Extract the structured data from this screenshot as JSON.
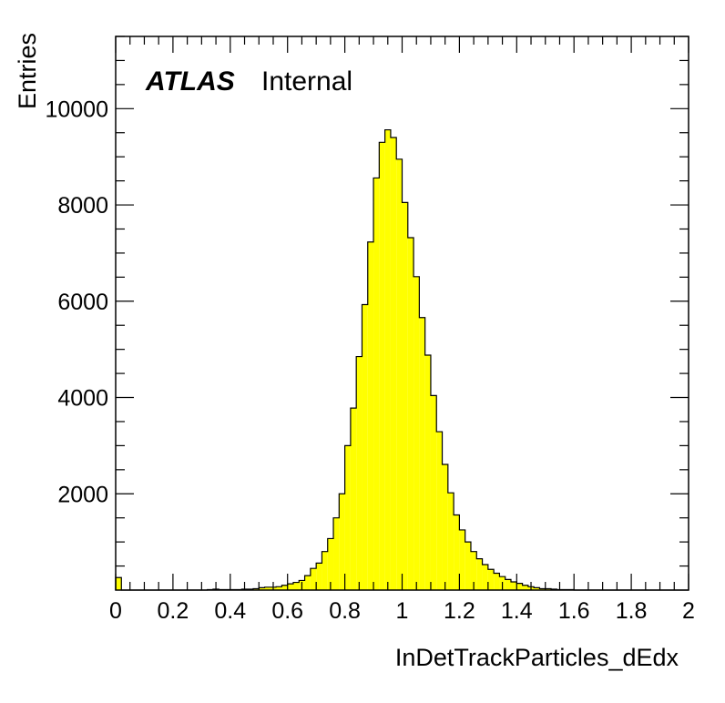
{
  "chart_data": {
    "type": "bar",
    "xlabel": "InDetTrackParticles_dEdx",
    "ylabel": "Entries",
    "xlim": [
      0,
      2
    ],
    "ylim": [
      0,
      11500
    ],
    "bin_width": 0.02,
    "fill_color": "#ffff00",
    "line_color": "#000000",
    "grid": false,
    "xticks": [
      "0",
      "0.2",
      "0.4",
      "0.6",
      "0.8",
      "1",
      "1.2",
      "1.4",
      "1.6",
      "1.8",
      "2"
    ],
    "yticks": [
      "2000",
      "4000",
      "6000",
      "8000",
      "10000"
    ],
    "label": {
      "experiment": "ATLAS",
      "status": "Internal"
    },
    "bins_lower_edge": [
      0.0,
      0.02,
      0.04,
      0.06,
      0.08,
      0.1,
      0.12,
      0.14,
      0.16,
      0.18,
      0.2,
      0.22,
      0.24,
      0.26,
      0.28,
      0.3,
      0.32,
      0.34,
      0.36,
      0.38,
      0.4,
      0.42,
      0.44,
      0.46,
      0.48,
      0.5,
      0.52,
      0.54,
      0.56,
      0.58,
      0.6,
      0.62,
      0.64,
      0.66,
      0.68,
      0.7,
      0.72,
      0.74,
      0.76,
      0.78,
      0.8,
      0.82,
      0.84,
      0.86,
      0.88,
      0.9,
      0.92,
      0.94,
      0.96,
      0.98,
      1.0,
      1.02,
      1.04,
      1.06,
      1.08,
      1.1,
      1.12,
      1.14,
      1.16,
      1.18,
      1.2,
      1.22,
      1.24,
      1.26,
      1.28,
      1.3,
      1.32,
      1.34,
      1.36,
      1.38,
      1.4,
      1.42,
      1.44,
      1.46,
      1.48,
      1.5,
      1.52,
      1.54,
      1.56,
      1.58,
      1.6,
      1.62,
      1.64,
      1.66,
      1.68,
      1.7,
      1.72,
      1.74,
      1.76,
      1.78,
      1.8,
      1.82,
      1.84,
      1.86,
      1.88,
      1.9,
      1.92,
      1.94,
      1.96,
      1.98
    ],
    "values": [
      260,
      0,
      0,
      0,
      0,
      0,
      0,
      0,
      0,
      0,
      0,
      0,
      0,
      0,
      0,
      0,
      10,
      20,
      10,
      10,
      10,
      10,
      20,
      20,
      30,
      50,
      60,
      60,
      70,
      100,
      130,
      160,
      200,
      300,
      450,
      560,
      800,
      1070,
      1500,
      2000,
      3000,
      3780,
      4850,
      5930,
      7230,
      8560,
      9300,
      9560,
      9400,
      8950,
      8050,
      7320,
      6510,
      5660,
      4880,
      4040,
      3290,
      2610,
      2020,
      1560,
      1250,
      1000,
      800,
      650,
      530,
      430,
      350,
      280,
      220,
      170,
      140,
      100,
      70,
      50,
      30,
      30,
      20,
      10,
      10,
      10,
      0,
      0,
      0,
      0,
      0,
      0,
      0,
      0,
      0,
      0,
      0,
      0,
      0,
      0,
      0,
      0,
      0,
      0,
      0,
      0
    ]
  }
}
